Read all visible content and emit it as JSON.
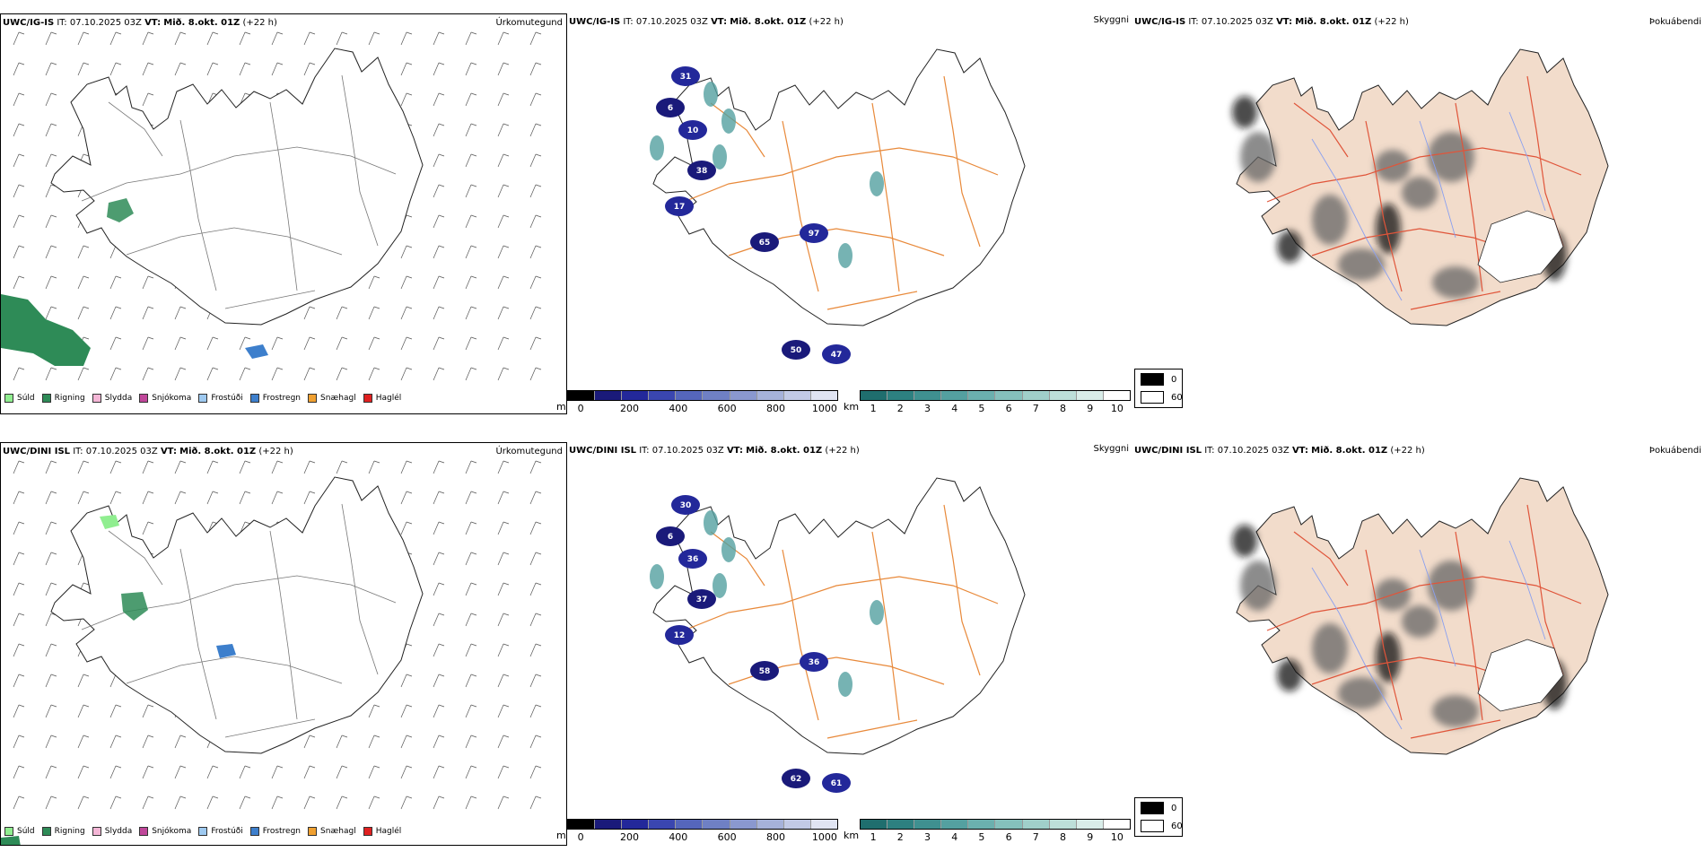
{
  "rows": [
    {
      "model": "UWC/IG-IS",
      "panels": [
        {
          "model": "UWC/IG-IS",
          "it_label": "IT:",
          "it_value": "07.10.2025 03Z",
          "vt_label": "VT:",
          "vt_value": "Mið. 8.okt. 01Z",
          "lead": "(+22 h)",
          "title": "Úrkomutegund"
        },
        {
          "model": "UWC/IG-IS",
          "it_label": "IT:",
          "it_value": "07.10.2025 03Z",
          "vt_label": "VT:",
          "vt_value": "Mið. 8.okt. 01Z",
          "lead": "(+22 h)",
          "title": "Skyggni"
        },
        {
          "model": "UWC/IG-IS",
          "it_label": "IT:",
          "it_value": "07.10.2025 03Z",
          "vt_label": "VT:",
          "vt_value": "Mið. 8.okt. 01Z",
          "lead": "(+22 h)",
          "title": "Þokuábendi"
        }
      ],
      "visibility_labels": [
        "31",
        "6",
        "10",
        "38",
        "17",
        "65",
        "97",
        "50",
        "47"
      ]
    },
    {
      "model": "UWC/DINI ISL",
      "panels": [
        {
          "model": "UWC/DINI ISL",
          "it_label": "IT:",
          "it_value": "07.10.2025 03Z",
          "vt_label": "VT:",
          "vt_value": "Mið. 8.okt. 01Z",
          "lead": "(+22 h)",
          "title": "Úrkomutegund"
        },
        {
          "model": "UWC/DINI ISL",
          "it_label": "IT:",
          "it_value": "07.10.2025 03Z",
          "vt_label": "VT:",
          "vt_value": "Mið. 8.okt. 01Z",
          "lead": "(+22 h)",
          "title": "Skyggni"
        },
        {
          "model": "UWC/DINI ISL",
          "it_label": "IT:",
          "it_value": "07.10.2025 03Z",
          "vt_label": "VT:",
          "vt_value": "Mið. 8.okt. 01Z",
          "lead": "(+22 h)",
          "title": "Þokuábendi"
        }
      ],
      "visibility_labels": [
        "30",
        "6",
        "36",
        "37",
        "12",
        "58",
        "36",
        "62",
        "61"
      ]
    }
  ],
  "precip_legend": [
    {
      "label": "Súld",
      "color": "#90ee90"
    },
    {
      "label": "Rigning",
      "color": "#2e8b57"
    },
    {
      "label": "Slydda",
      "color": "#f4b6d6"
    },
    {
      "label": "Snjókoma",
      "color": "#c0479a"
    },
    {
      "label": "Frostúði",
      "color": "#9ec9f0"
    },
    {
      "label": "Frostregn",
      "color": "#3d7fcc"
    },
    {
      "label": "Snæhagl",
      "color": "#f0a030"
    },
    {
      "label": "Haglél",
      "color": "#e02020"
    }
  ],
  "colorbar_m": {
    "unit": "m",
    "ticks": [
      "0",
      "200",
      "400",
      "600",
      "800",
      "1000"
    ],
    "colors": [
      "#000000",
      "#1a1a7a",
      "#23289a",
      "#3a46b0",
      "#5566bb",
      "#6f80c4",
      "#8a98cf",
      "#a6b2da",
      "#c2cae6",
      "#e0e4f2"
    ]
  },
  "colorbar_km": {
    "unit": "km",
    "ticks": [
      "1",
      "2",
      "3",
      "4",
      "5",
      "6",
      "7",
      "8",
      "9",
      "10"
    ],
    "colors": [
      "#1f6e6e",
      "#2d8080",
      "#3f9090",
      "#54a0a0",
      "#6bb0ae",
      "#85c0bc",
      "#a0cfca",
      "#bddfd9",
      "#d9ede9",
      "#ffffff"
    ]
  },
  "fog_legend": [
    {
      "label": "0",
      "color": "#000000"
    },
    {
      "label": "60",
      "color": "#ffffff"
    }
  ]
}
